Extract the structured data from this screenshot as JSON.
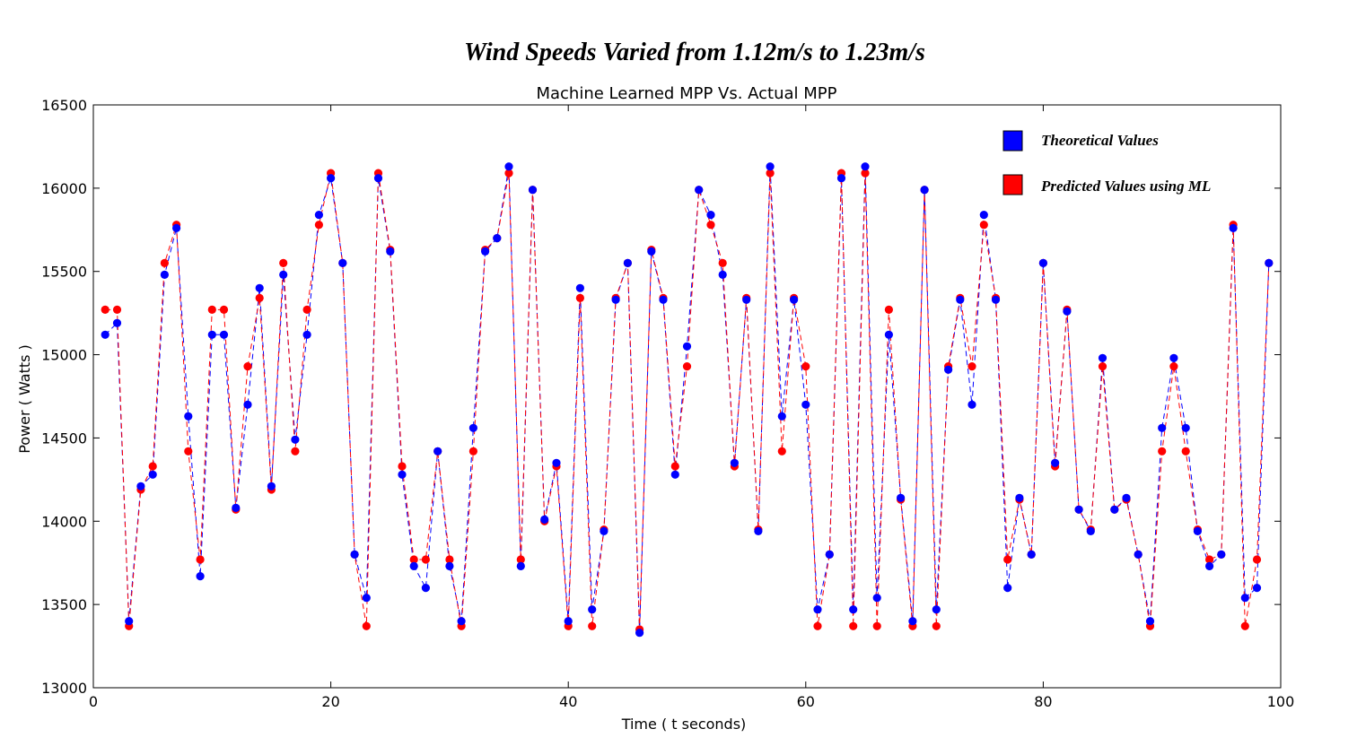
{
  "chart_data": {
    "type": "line",
    "suptitle": "Wind Speeds Varied from 1.12m/s to 1.23m/s",
    "title": "Machine Learned MPP Vs. Actual MPP",
    "xlabel": "Time ( t seconds)",
    "ylabel": "Power ( Watts )",
    "xlim": [
      0,
      100
    ],
    "ylim": [
      13000,
      16500
    ],
    "xticks": [
      0,
      20,
      40,
      60,
      80,
      100
    ],
    "yticks": [
      13000,
      13500,
      14000,
      14500,
      15000,
      15500,
      16000,
      16500
    ],
    "grid": false,
    "legend_position": "top-right",
    "x": [
      1,
      2,
      3,
      4,
      5,
      6,
      7,
      8,
      9,
      10,
      11,
      12,
      13,
      14,
      15,
      16,
      17,
      18,
      19,
      20,
      21,
      22,
      23,
      24,
      25,
      26,
      27,
      28,
      29,
      30,
      31,
      32,
      33,
      34,
      35,
      36,
      37,
      38,
      39,
      40,
      41,
      42,
      43,
      44,
      45,
      46,
      47,
      48,
      49,
      50,
      51,
      52,
      53,
      54,
      55,
      56,
      57,
      58,
      59,
      60,
      61,
      62,
      63,
      64,
      65,
      66,
      67,
      68,
      69,
      70,
      71,
      72,
      73,
      74,
      75,
      76,
      77,
      78,
      79,
      80,
      81,
      82,
      83,
      84,
      85,
      86,
      87,
      88,
      89,
      90,
      91,
      92,
      93,
      94,
      95,
      96,
      97,
      98,
      99
    ],
    "series": [
      {
        "name": "Theoretical Values",
        "color": "#0000ff",
        "values": [
          15120,
          15190,
          13400,
          14210,
          14280,
          15480,
          15760,
          14630,
          13670,
          15120,
          15120,
          14080,
          14700,
          15400,
          14210,
          15480,
          14490,
          15120,
          15840,
          16060,
          15550,
          13800,
          13540,
          16060,
          15620,
          14280,
          13730,
          13600,
          14420,
          13730,
          13400,
          14560,
          15620,
          15700,
          16130,
          13730,
          15990,
          14010,
          14350,
          13400,
          15400,
          13470,
          13940,
          15330,
          15550,
          13330,
          15620,
          15330,
          14280,
          15050,
          15990,
          15840,
          15480,
          14350,
          15330,
          13940,
          16130,
          14630,
          15330,
          14700,
          13470,
          13800,
          16060,
          13470,
          16130,
          13540,
          15120,
          14140,
          13400,
          15990,
          13470,
          14910,
          15330,
          14700,
          15840,
          15330,
          13600,
          14140,
          13800,
          15550,
          14350,
          15260,
          14070,
          13940,
          14980,
          14070,
          14140,
          13800,
          13400,
          14560,
          14980,
          14560,
          13940,
          13730,
          13800,
          15760,
          13540,
          13600,
          15550
        ]
      },
      {
        "name": "Predicted Values using ML",
        "color": "#ff0000",
        "values": [
          15270,
          15270,
          13370,
          14190,
          14330,
          15550,
          15780,
          14420,
          13770,
          15270,
          15270,
          14070,
          14930,
          15340,
          14190,
          15550,
          14420,
          15270,
          15780,
          16090,
          15550,
          13800,
          13370,
          16090,
          15630,
          14330,
          13770,
          13770,
          14420,
          13770,
          13370,
          14420,
          15630,
          15700,
          16090,
          13770,
          15990,
          14000,
          14330,
          13370,
          15340,
          13370,
          13950,
          15340,
          15550,
          13350,
          15630,
          15340,
          14330,
          14930,
          15990,
          15780,
          15550,
          14330,
          15340,
          13950,
          16090,
          14420,
          15340,
          14930,
          13370,
          13800,
          16090,
          13370,
          16090,
          13370,
          15270,
          14130,
          13370,
          15990,
          13370,
          14930,
          15340,
          14930,
          15780,
          15340,
          13770,
          14130,
          13800,
          15550,
          14330,
          15270,
          14070,
          13950,
          14930,
          14070,
          14130,
          13800,
          13370,
          14420,
          14930,
          14420,
          13950,
          13770,
          13800,
          15780,
          13370,
          13770,
          15550
        ]
      }
    ]
  }
}
